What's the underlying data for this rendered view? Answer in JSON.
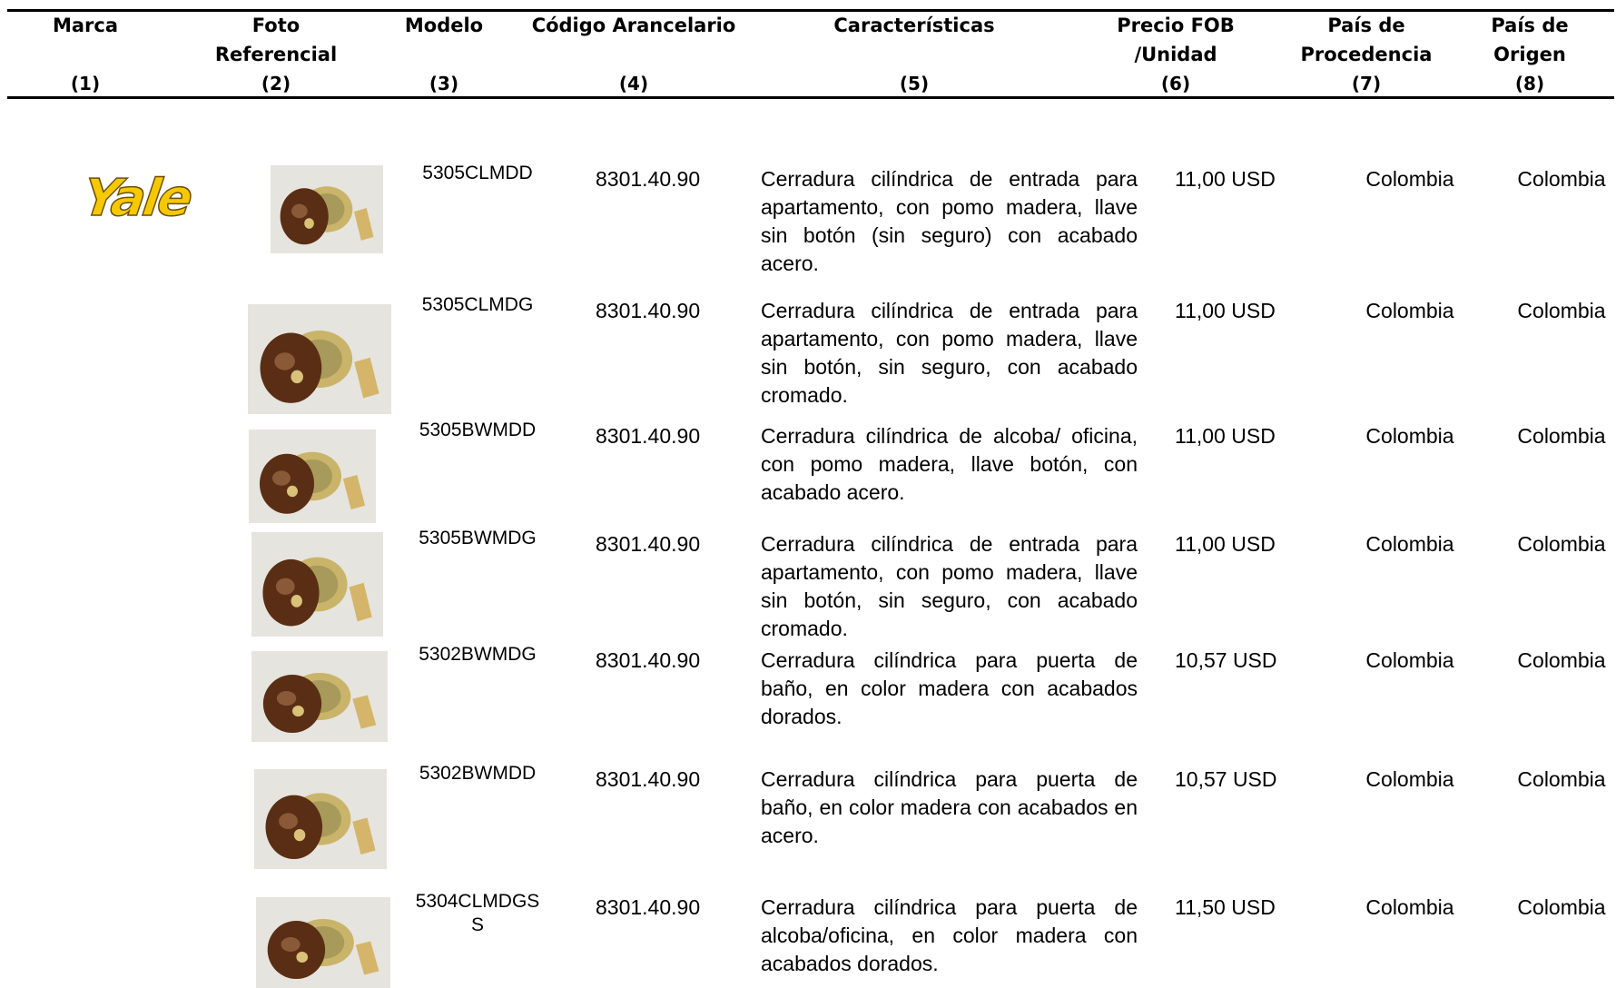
{
  "header": {
    "columns": [
      {
        "title": "Marca",
        "number": "(1)"
      },
      {
        "title": "Foto Referencial",
        "number": "(2)"
      },
      {
        "title": "Modelo",
        "number": "(3)"
      },
      {
        "title": "Código Arancelario",
        "number": "(4)"
      },
      {
        "title": "Características",
        "number": "(5)"
      },
      {
        "title": "Precio FOB /Unidad",
        "number": "(6)"
      },
      {
        "title": "País de Procedencia",
        "number": "(7)"
      },
      {
        "title": "País de Origen",
        "number": "(8)"
      }
    ]
  },
  "brand": "Yale",
  "table": {
    "rows": [
      [
        "5305CLMDD",
        "8301.40.90",
        "Cerradura cilíndrica de entrada para apartamento, con pomo madera, llave sin botón (sin seguro) con acabado acero.",
        "11,00 USD",
        "Colombia",
        "Colombia"
      ],
      [
        "5305CLMDG",
        "8301.40.90",
        "Cerradura cilíndrica de entrada para apartamento, con pomo madera, llave sin botón, sin seguro, con acabado cromado.",
        "11,00 USD",
        "Colombia",
        "Colombia"
      ],
      [
        "5305BWMDD",
        "8301.40.90",
        "Cerradura cilíndrica de alcoba/ oficina, con pomo madera, llave botón, con acabado acero.",
        "11,00 USD",
        "Colombia",
        "Colombia"
      ],
      [
        "5305BWMDG",
        "8301.40.90",
        "Cerradura cilíndrica de entrada para apartamento, con pomo madera, llave sin botón, sin seguro, con acabado cromado.",
        "11,00 USD",
        "Colombia",
        "Colombia"
      ],
      [
        "5302BWMDG",
        "8301.40.90",
        "Cerradura cilíndrica para puerta de baño, en color madera con acabados dorados.",
        "10,57 USD",
        "Colombia",
        "Colombia"
      ],
      [
        "5302BWMDD",
        "8301.40.90",
        "Cerradura cilíndrica para puerta de baño, en color madera con acabados en acero.",
        "10,57 USD",
        "Colombia",
        "Colombia"
      ],
      [
        "5304CLMDGSS",
        "8301.40.90",
        "Cerradura cilíndrica para puerta de alcoba/oficina, en color madera con acabados dorados.",
        "11,50 USD",
        "Colombia",
        "Colombia"
      ]
    ]
  }
}
